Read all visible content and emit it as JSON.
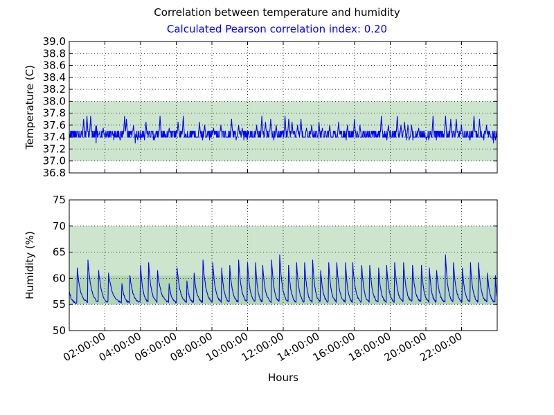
{
  "figure": {
    "title": "Correlation between temperature and humidity",
    "subtitle": "Calculated Pearson correlation index: 0.20",
    "title_color": "#000000",
    "subtitle_color": "#0000ff"
  },
  "chart_data": [
    {
      "type": "line",
      "ylabel": "Temperature (C)",
      "ylim": [
        36.8,
        39.0
      ],
      "yticks": [
        "39.0",
        "38.8",
        "38.6",
        "38.4",
        "38.2",
        "38.0",
        "37.8",
        "37.6",
        "37.4",
        "37.2",
        "37.0",
        "36.8"
      ],
      "xlim_hours": [
        0,
        24
      ],
      "band": {
        "low": 37.0,
        "high": 38.0,
        "color": "#cde4cd"
      },
      "grid": true,
      "series_color": "#0000ff",
      "series": {
        "name": "Temperature",
        "baseline": 37.4,
        "noise_levels": [
          37.4,
          37.5,
          37.45,
          37.35
        ],
        "spike_hours": [
          0.8,
          1.0,
          1.2,
          1.5,
          1.9,
          2.4,
          3.1,
          3.2,
          3.6,
          4.3,
          5.1,
          5.6,
          6.1,
          6.4,
          7.3,
          7.6,
          8.1,
          8.5,
          9.1,
          9.5,
          9.7,
          10.5,
          10.8,
          11.0,
          11.3,
          11.6,
          12.1,
          12.3,
          12.5,
          12.8,
          13.0,
          13.3,
          13.6,
          14.0,
          14.2,
          14.6,
          15.1,
          15.6,
          16.0,
          16.3,
          17.5,
          17.9,
          18.4,
          18.6,
          18.8,
          19.0,
          19.2,
          19.6,
          20.4,
          21.1,
          21.4,
          21.7,
          22.0,
          22.7,
          23.0,
          23.4
        ],
        "spike_values": [
          37.7,
          37.75,
          37.75,
          37.65,
          37.55,
          37.5,
          37.75,
          37.7,
          37.6,
          37.65,
          37.75,
          37.55,
          37.65,
          37.75,
          37.65,
          37.6,
          37.55,
          37.6,
          37.7,
          37.6,
          37.55,
          37.6,
          37.75,
          37.65,
          37.7,
          37.6,
          37.75,
          37.7,
          37.65,
          37.6,
          37.7,
          37.55,
          37.6,
          37.65,
          37.55,
          37.6,
          37.65,
          37.6,
          37.7,
          37.6,
          37.75,
          37.6,
          37.75,
          37.6,
          37.65,
          37.6,
          37.6,
          37.55,
          37.75,
          37.75,
          37.7,
          37.7,
          37.6,
          37.75,
          37.7,
          37.6
        ],
        "dip_hours": [
          1.5,
          3.7,
          23.8
        ],
        "dip_values": [
          37.3,
          37.3,
          37.3
        ]
      }
    },
    {
      "type": "line",
      "ylabel": "Humidity (%)",
      "xlabel": "Hours",
      "ylim": [
        50,
        75
      ],
      "yticks": [
        "75",
        "70",
        "65",
        "60",
        "55",
        "50"
      ],
      "xlim_hours": [
        0,
        24
      ],
      "xticks": [
        "02:00:00",
        "04:00:00",
        "06:00:00",
        "08:00:00",
        "10:00:00",
        "12:00:00",
        "14:00:00",
        "16:00:00",
        "18:00:00",
        "20:00:00",
        "22:00:00"
      ],
      "xtick_hours": [
        2,
        4,
        6,
        8,
        10,
        12,
        14,
        16,
        18,
        20,
        22
      ],
      "band": {
        "low": 55,
        "high": 70,
        "color": "#cde4cd"
      },
      "band_inner": {
        "low": 55,
        "high": 60.5,
        "color": "#b3d6b3"
      },
      "grid": true,
      "series_color": "#0000ff",
      "series": {
        "name": "Humidity",
        "start_value": 57.5,
        "floor": 55.2,
        "peak_hours": [
          0.45,
          1.05,
          1.65,
          2.2,
          2.95,
          3.4,
          4.0,
          4.45,
          4.95,
          5.6,
          6.05,
          6.6,
          7.0,
          7.5,
          8.05,
          8.55,
          9.0,
          9.5,
          10.0,
          10.45,
          10.85,
          11.35,
          11.8,
          12.3,
          12.75,
          13.2,
          13.65,
          14.1,
          14.55,
          15.0,
          15.5,
          15.9,
          16.4,
          16.85,
          17.35,
          17.8,
          18.25,
          18.75,
          19.25,
          19.75,
          20.2,
          20.6,
          21.1,
          21.55,
          22.05,
          22.5,
          22.95,
          23.45,
          23.9
        ],
        "peak_values": [
          62,
          63.5,
          61.5,
          61,
          59,
          60.5,
          62.5,
          63,
          61.5,
          59,
          62,
          59.5,
          61,
          63.5,
          63,
          62,
          62.5,
          63.5,
          63,
          63,
          62.5,
          63.5,
          64.5,
          62.5,
          63,
          63,
          63.5,
          61.5,
          63,
          63,
          63,
          63,
          62.5,
          62.5,
          62,
          62.5,
          63,
          63,
          62.5,
          62.5,
          62,
          61.5,
          64.5,
          63,
          62,
          63,
          63,
          61,
          60.5
        ]
      }
    }
  ]
}
